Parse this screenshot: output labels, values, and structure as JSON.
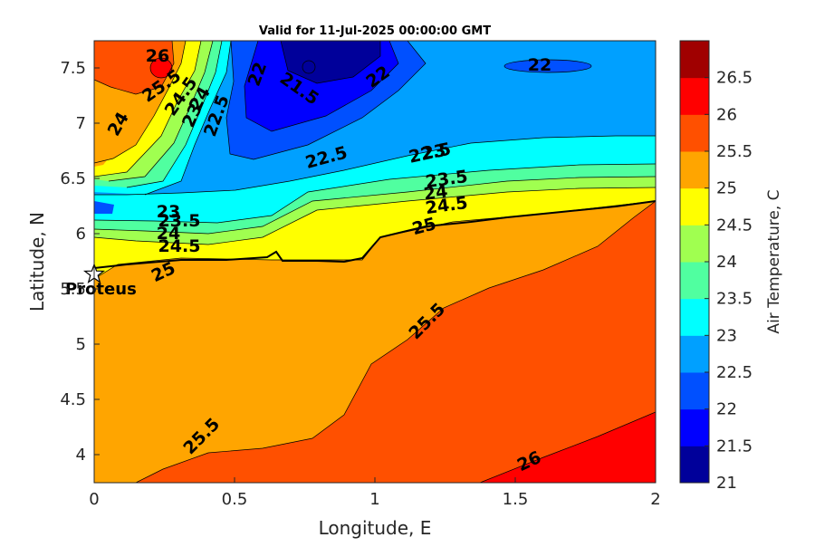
{
  "chart_data": {
    "type": "contour",
    "title": "Valid for 11-Jul-2025 00:00:00 GMT",
    "xlabel": "Longitude, E",
    "ylabel": "Latitude, N",
    "xlim": [
      0,
      2
    ],
    "ylim": [
      3.75,
      7.75
    ],
    "xticks": [
      "0",
      "0.5",
      "1",
      "1.5",
      "2"
    ],
    "yticks": [
      "4",
      "4.5",
      "5",
      "5.5",
      "6",
      "6.5",
      "7",
      "7.5"
    ],
    "colorbar": {
      "label": "Air Temperature, C",
      "levels": [
        21,
        21.5,
        22,
        22.5,
        23,
        23.5,
        24,
        24.5,
        25,
        25.5,
        26,
        26.5
      ],
      "ticks": [
        "21",
        "21.5",
        "22",
        "22.5",
        "23",
        "23.5",
        "24",
        "24.5",
        "25",
        "25.5",
        "26",
        "26.5"
      ],
      "colors": [
        "#00009a",
        "#0000ff",
        "#0050ff",
        "#00a0ff",
        "#00ffff",
        "#50ffa0",
        "#a0ff50",
        "#ffff00",
        "#ffa500",
        "#ff5000",
        "#ff0000",
        "#a00000"
      ]
    },
    "contour_labels": [
      "26",
      "25.5",
      "24.5",
      "24",
      "23",
      "22.5",
      "22",
      "24",
      "22",
      "21.5",
      "22",
      "22.5",
      "22.5",
      "23",
      "23.5",
      "24",
      "24.5",
      "25",
      "23",
      "23.5",
      "24",
      "24.5",
      "25",
      "25.5",
      "25.5",
      "26"
    ],
    "site": {
      "name": "Proteus",
      "lon": 0.0,
      "lat": 5.63
    },
    "grid": false,
    "legend": "colorbar-right"
  }
}
